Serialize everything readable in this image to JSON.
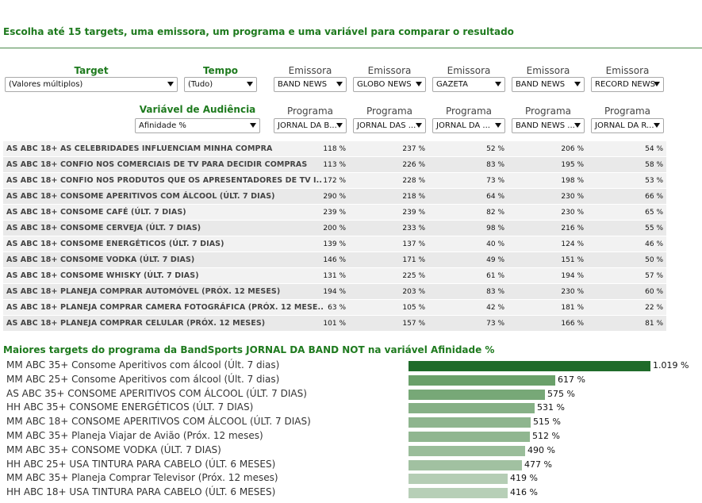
{
  "instruction": "Escolha até 15 targets, uma emissora, um programa e uma variável para comparar o resultado",
  "filters": {
    "target_label": "Target",
    "target_value": "(Valores múltiplos)",
    "tempo_label": "Tempo",
    "tempo_value": "(Tudo)",
    "variavel_label": "Variável de Audiência",
    "variavel_value": "Afinidade %"
  },
  "columns": [
    {
      "emissora_label": "Emissora",
      "emissora": "BAND NEWS",
      "programa_label": "Programa",
      "programa": "JORNAL DA B..."
    },
    {
      "emissora_label": "Emissora",
      "emissora": "GLOBO NEWS",
      "programa_label": "Programa",
      "programa": "JORNAL DAS ..."
    },
    {
      "emissora_label": "Emissora",
      "emissora": "GAZETA",
      "programa_label": "Programa",
      "programa": "JORNAL DA ..."
    },
    {
      "emissora_label": "Emissora",
      "emissora": "BAND NEWS",
      "programa_label": "Programa",
      "programa": "BAND NEWS ..."
    },
    {
      "emissora_label": "Emissora",
      "emissora": "RECORD NEWS",
      "programa_label": "Programa",
      "programa": "JORNAL DA R..."
    }
  ],
  "rows": [
    {
      "name": "AS ABC 18+ AS CELEBRIDADES INFLUENCIAM MINHA COMPRA",
      "values": [
        "118 %",
        "237 %",
        "52 %",
        "206 %",
        "54 %"
      ]
    },
    {
      "name": "AS ABC 18+ CONFIO NOS COMERCIAIS DE TV PARA DECIDIR COMPRAS",
      "values": [
        "113 %",
        "226 %",
        "83 %",
        "195 %",
        "58 %"
      ]
    },
    {
      "name": "AS ABC 18+ CONFIO NOS PRODUTOS QUE OS APRESENTADORES DE TV I..",
      "values": [
        "172 %",
        "228 %",
        "73 %",
        "198 %",
        "53 %"
      ]
    },
    {
      "name": "AS ABC 18+ CONSOME APERITIVOS COM ÁLCOOL (ÚLT. 7 DIAS)",
      "values": [
        "290 %",
        "218 %",
        "64 %",
        "230 %",
        "66 %"
      ]
    },
    {
      "name": "AS ABC 18+ CONSOME CAFÉ (ÚLT. 7 DIAS)",
      "values": [
        "239 %",
        "239 %",
        "82 %",
        "230 %",
        "65 %"
      ]
    },
    {
      "name": "AS ABC 18+ CONSOME CERVEJA (ÚLT. 7 DIAS)",
      "values": [
        "200 %",
        "233 %",
        "98 %",
        "216 %",
        "55 %"
      ]
    },
    {
      "name": "AS ABC 18+ CONSOME ENERGÉTICOS (ÚLT. 7 DIAS)",
      "values": [
        "139 %",
        "137 %",
        "40 %",
        "124 %",
        "46 %"
      ]
    },
    {
      "name": "AS ABC 18+ CONSOME VODKA (ÚLT. 7 DIAS)",
      "values": [
        "146 %",
        "171 %",
        "49 %",
        "151 %",
        "50 %"
      ]
    },
    {
      "name": "AS ABC 18+ CONSOME WHISKY (ÚLT. 7 DIAS)",
      "values": [
        "131 %",
        "225 %",
        "61 %",
        "194 %",
        "57 %"
      ]
    },
    {
      "name": "AS ABC 18+ PLANEJA COMPRAR AUTOMÓVEL (PRÓX. 12 MESES)",
      "values": [
        "194 %",
        "203 %",
        "83 %",
        "230 %",
        "60 %"
      ]
    },
    {
      "name": "AS ABC 18+ PLANEJA COMPRAR CAMERA FOTOGRÁFICA (PRÓX. 12 MESE..",
      "values": [
        "63 %",
        "105 %",
        "42 %",
        "181 %",
        "22 %"
      ]
    },
    {
      "name": "AS ABC 18+ PLANEJA COMPRAR CELULAR (PRÓX. 12 MESES)",
      "values": [
        "101 %",
        "157 %",
        "73 %",
        "166 %",
        "81 %"
      ]
    }
  ],
  "chart_title": "Maiores targets do programa da BandSports JORNAL DA BAND NOT na variável Afinidade %",
  "chart_data": {
    "type": "bar",
    "orientation": "horizontal",
    "title": "Maiores targets do programa da BandSports JORNAL DA BAND NOT na variável Afinidade %",
    "categories": [
      "MM ABC 35+ Consome Aperitivos com álcool (Últ. 7 dias)",
      "MM ABC 25+ Consome Aperitivos com álcool (Últ. 7 dias)",
      "AS ABC 35+ CONSOME APERITIVOS COM ÁLCOOL (ÚLT. 7 DIAS)",
      "HH ABC 35+ CONSOME ENERGÉTICOS (ÚLT. 7 DIAS)",
      "MM ABC 18+ CONSOME APERITIVOS COM ÁLCOOL (ÚLT. 7 DIAS)",
      "MM ABC 35+ Planeja Viajar de Avião (Próx. 12 meses)",
      "MM ABC 35+ CONSOME VODKA (ÚLT. 7 DIAS)",
      "HH ABC 25+ USA TINTURA PARA CABELO (ÚLT. 6 MESES)",
      "MM ABC 35+ Planeja Comprar Televisor (Próx. 12 meses)",
      "HH ABC 18+ USA TINTURA PARA CABELO (ÚLT. 6 MESES)"
    ],
    "values": [
      1019,
      617,
      575,
      531,
      515,
      512,
      490,
      477,
      419,
      416
    ],
    "value_labels": [
      "1.019 %",
      "617 %",
      "575 %",
      "531 %",
      "515 %",
      "512 %",
      "490 %",
      "477 %",
      "419 %",
      "416 %"
    ],
    "xlim": [
      0,
      1019
    ],
    "colors": [
      "#1f6b2a",
      "#6aa06a",
      "#77a877",
      "#86b086",
      "#8eb58e",
      "#90b690",
      "#9abd9a",
      "#a1c1a1",
      "#b5cdb5",
      "#b7cfb7"
    ]
  }
}
